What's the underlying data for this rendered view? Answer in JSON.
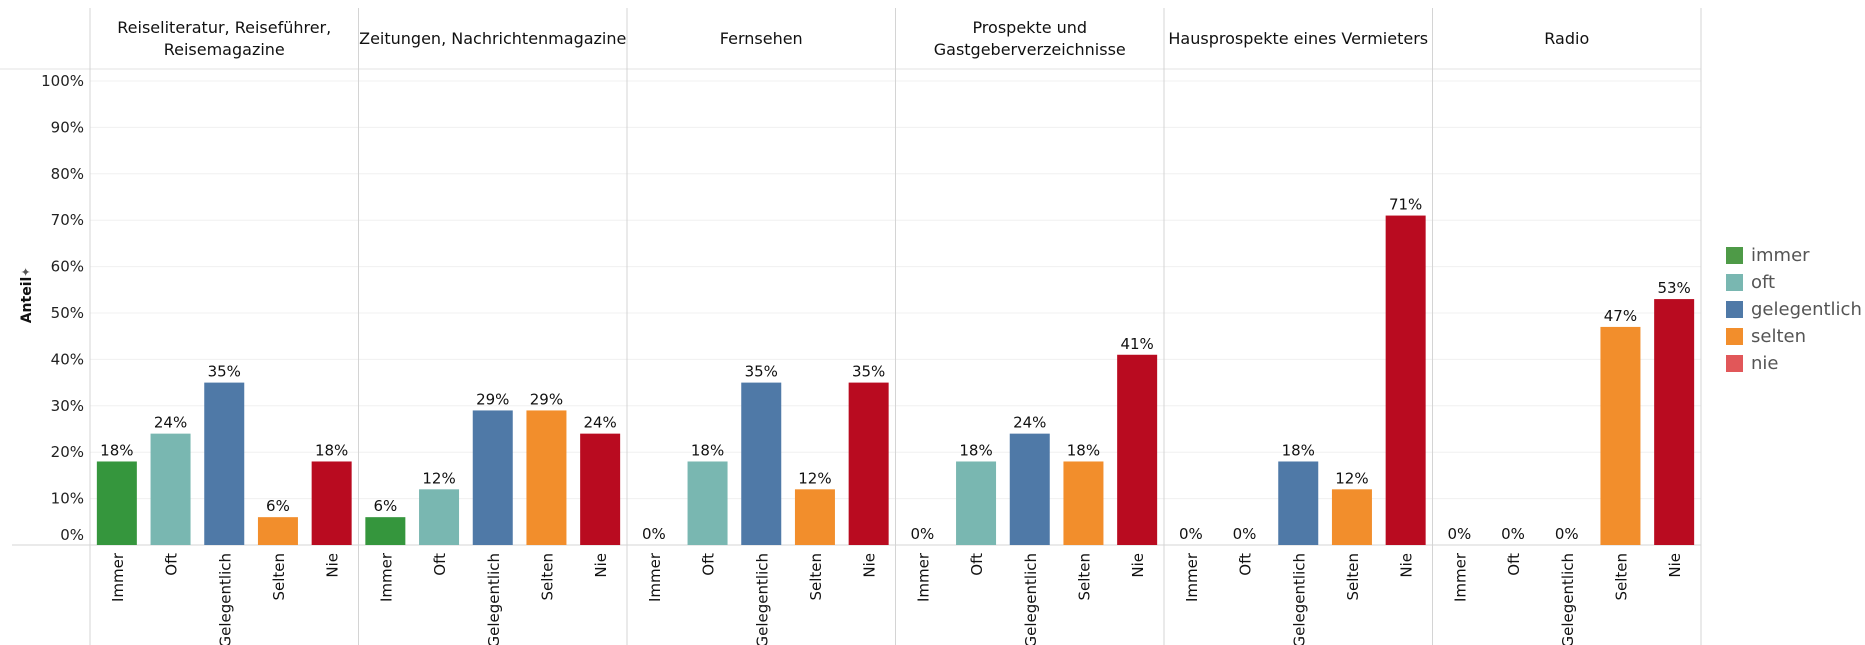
{
  "chart_data": {
    "type": "bar",
    "ylabel": "Anteil",
    "ylim": [
      0,
      100
    ],
    "yticks": [
      "0%",
      "10%",
      "20%",
      "30%",
      "40%",
      "50%",
      "60%",
      "70%",
      "80%",
      "90%",
      "100%"
    ],
    "categories": [
      "Immer",
      "Oft",
      "Gelegentlich",
      "Selten",
      "Nie"
    ],
    "category_colors": [
      "#35963d",
      "#79b7b1",
      "#4f79a7",
      "#f28e2c",
      "#b90b20"
    ],
    "panels": [
      {
        "title": [
          "Reiseliteratur, Reiseführer,",
          "Reisemagazine"
        ],
        "values": [
          18,
          24,
          35,
          6,
          18
        ]
      },
      {
        "title": [
          "Zeitungen, Nachrichtenmagazine"
        ],
        "values": [
          6,
          12,
          29,
          29,
          24
        ]
      },
      {
        "title": [
          "Fernsehen"
        ],
        "values": [
          0,
          18,
          35,
          12,
          35
        ]
      },
      {
        "title": [
          "Prospekte und",
          "Gastgeberverzeichnisse"
        ],
        "values": [
          0,
          18,
          24,
          18,
          41
        ]
      },
      {
        "title": [
          "Hausprospekte eines Vermieters"
        ],
        "values": [
          0,
          0,
          18,
          12,
          71
        ]
      },
      {
        "title": [
          "Radio"
        ],
        "values": [
          0,
          0,
          0,
          47,
          53
        ]
      }
    ],
    "grid": true
  },
  "legend": {
    "position": "right",
    "items": [
      {
        "label": "immer",
        "color": "#4e9a47"
      },
      {
        "label": "oft",
        "color": "#79b7b1"
      },
      {
        "label": "gelegentlich",
        "color": "#4f79a7"
      },
      {
        "label": "selten",
        "color": "#f28e2c"
      },
      {
        "label": "nie",
        "color": "#e15759"
      }
    ]
  }
}
